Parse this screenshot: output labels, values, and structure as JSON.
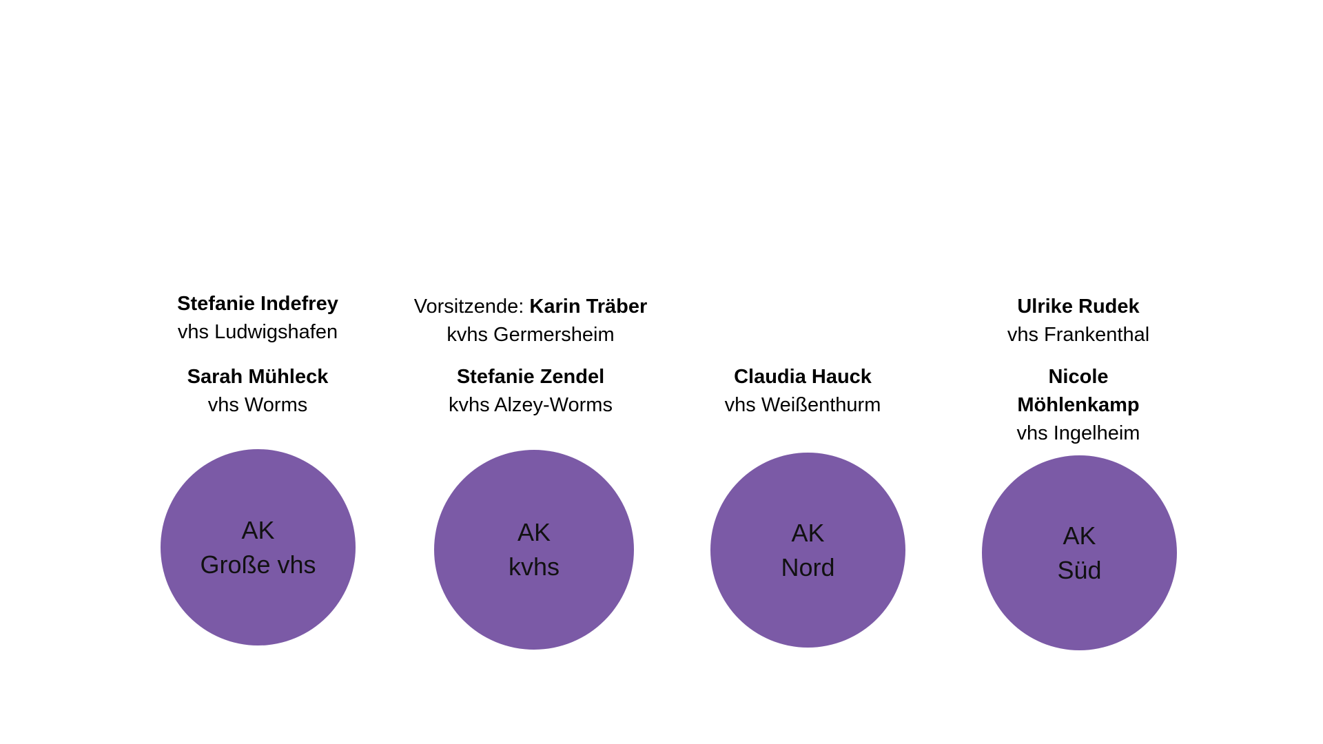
{
  "colors": {
    "circle_fill": "#7b5aa6",
    "text": "#000000"
  },
  "groups": [
    {
      "circle": {
        "line1": "AK",
        "line2": "Große vhs"
      },
      "people": [
        {
          "name": "Stefanie Indefrey",
          "institution": "vhs Ludwigshafen"
        },
        {
          "name": "Sarah Mühleck",
          "institution": "vhs Worms"
        }
      ]
    },
    {
      "circle": {
        "line1": "AK",
        "line2": "kvhs"
      },
      "chair_prefix": "Vorsitzende: ",
      "people": [
        {
          "name": "Karin Träber",
          "institution": "kvhs Germersheim"
        },
        {
          "name": "Stefanie Zendel",
          "institution": "kvhs Alzey-Worms"
        }
      ]
    },
    {
      "circle": {
        "line1": "AK",
        "line2": "Nord"
      },
      "people": [
        {
          "name": "Claudia Hauck",
          "institution": "vhs Weißenthurm"
        }
      ]
    },
    {
      "circle": {
        "line1": "AK",
        "line2": "Süd"
      },
      "people": [
        {
          "name": "Ulrike Rudek",
          "institution": "vhs Frankenthal"
        },
        {
          "name_line1": "Nicole",
          "name_line2": "Möhlenkamp",
          "institution": "vhs Ingelheim"
        }
      ]
    }
  ]
}
